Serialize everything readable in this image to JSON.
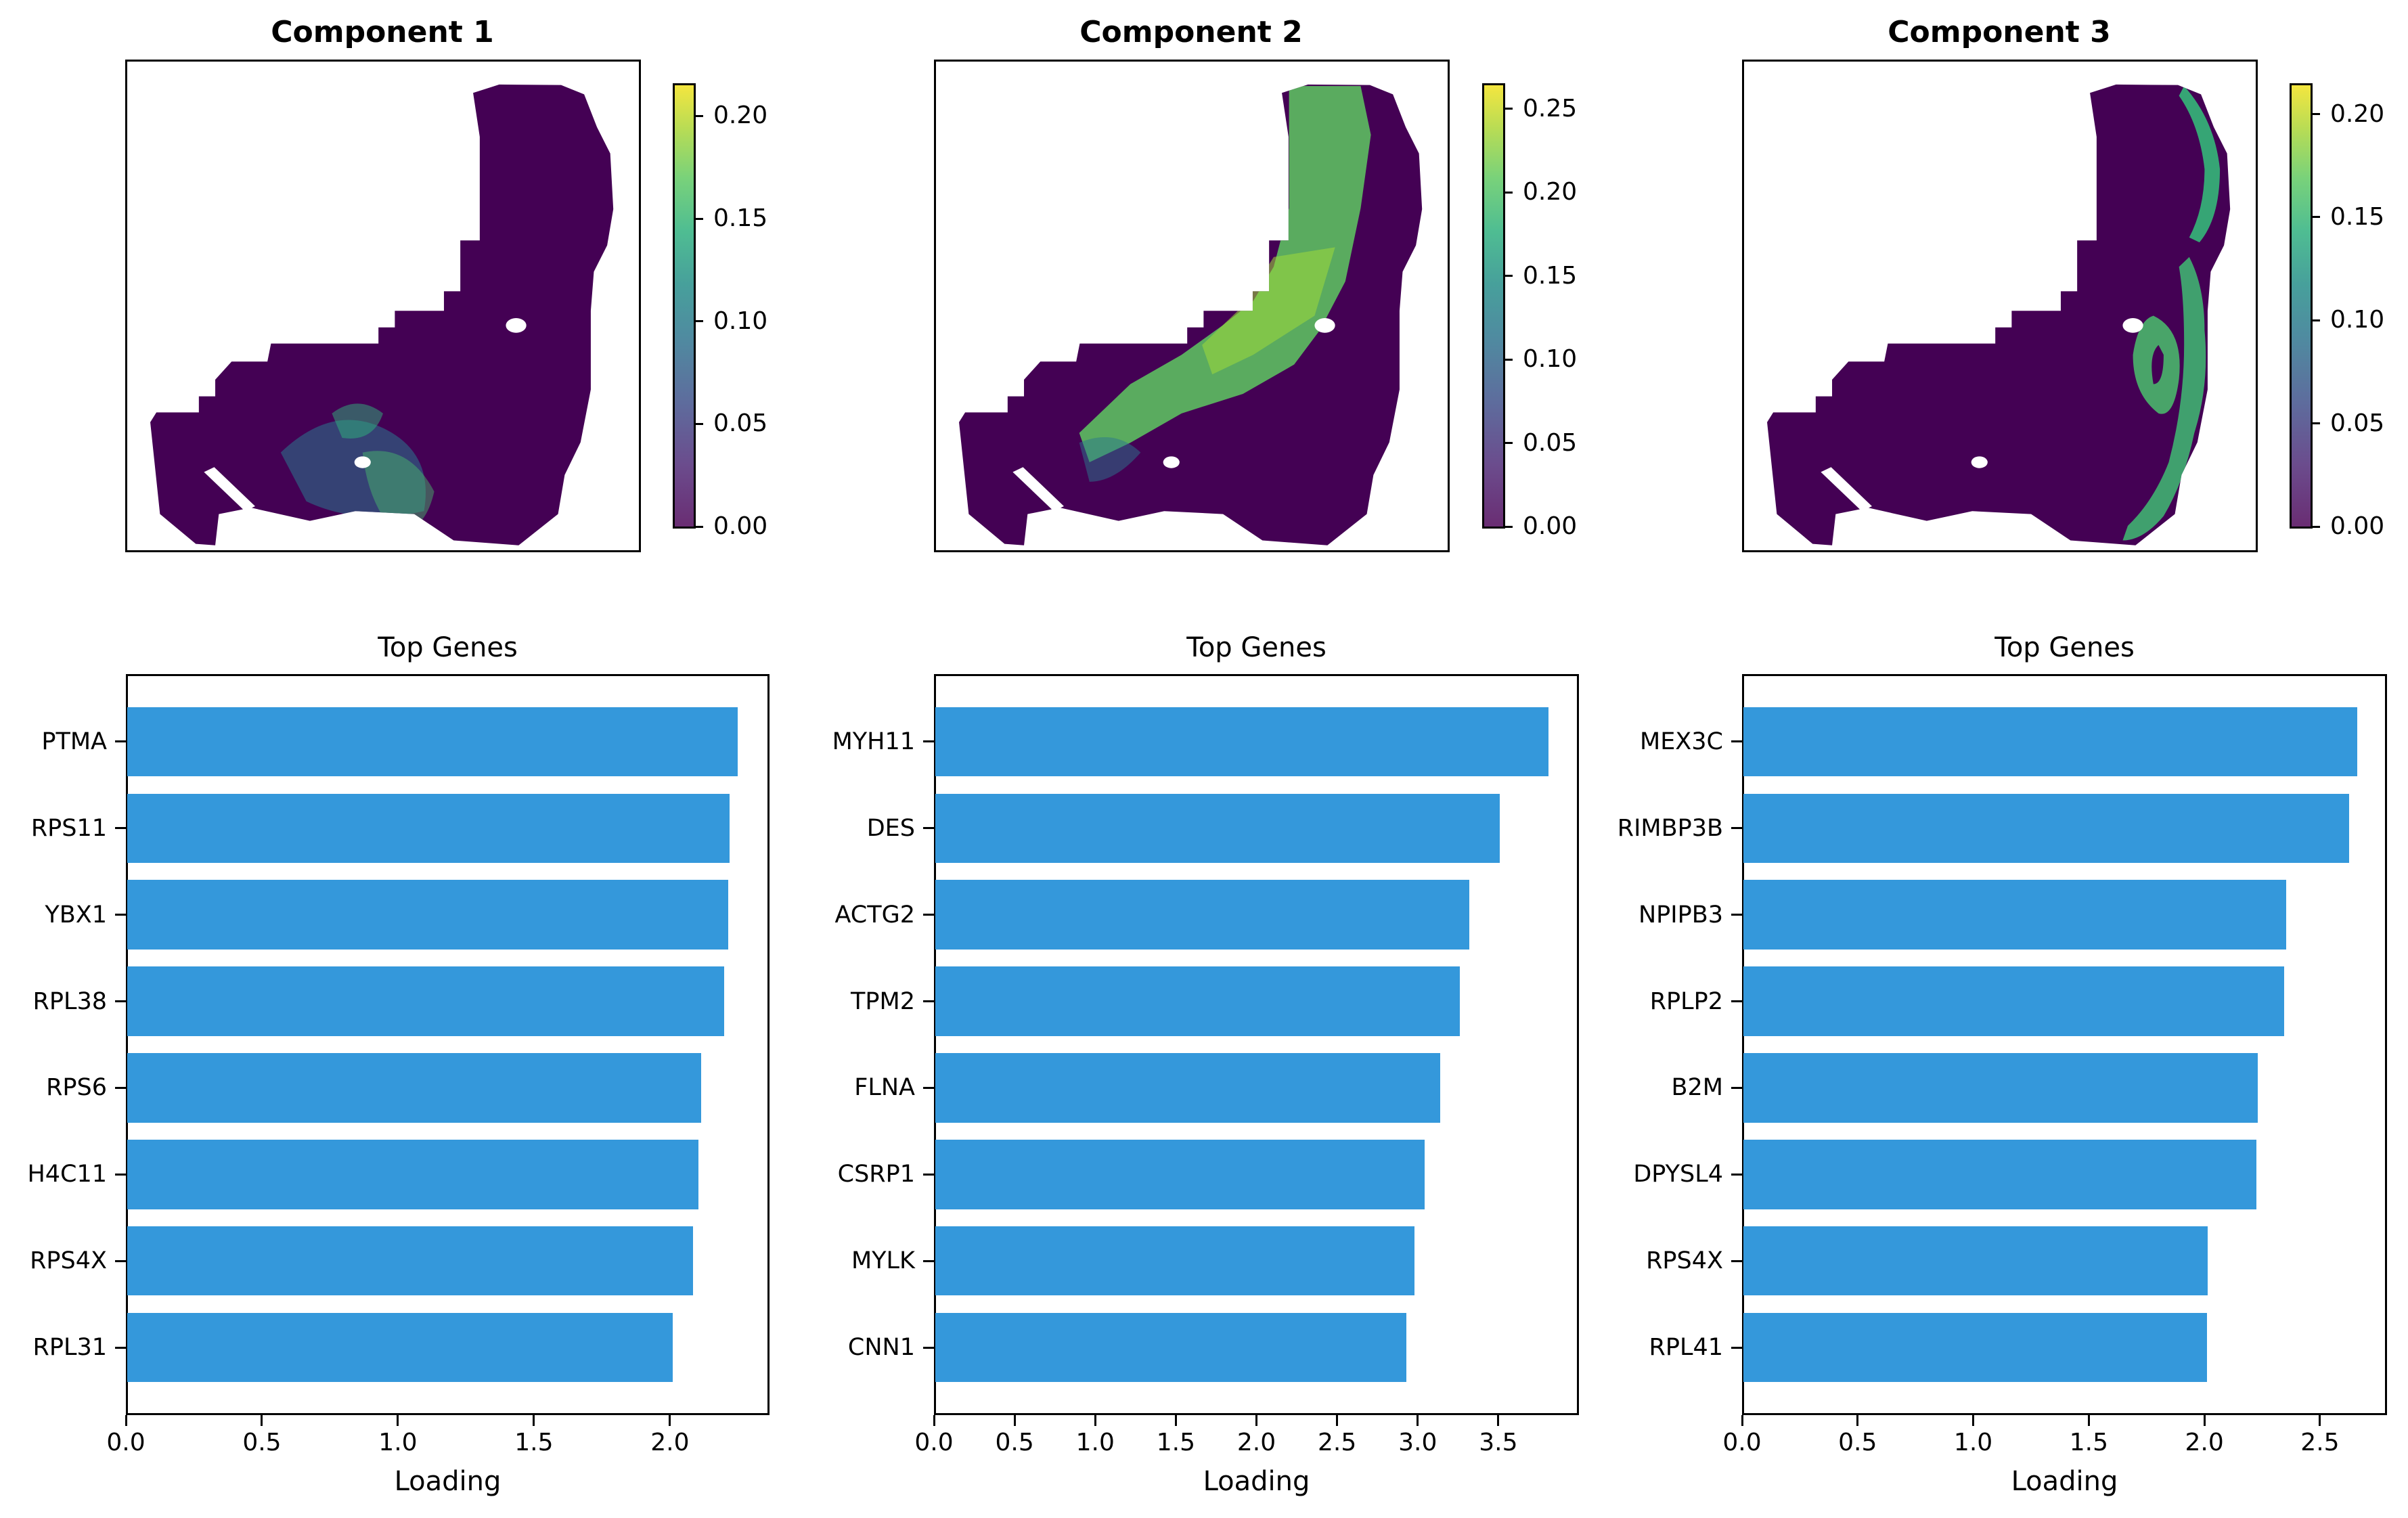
{
  "chart_data": [
    {
      "type": "scatter",
      "title": "Component 1",
      "description": "Spatial map of component 1 activity (viridis colormap)",
      "colormap": "viridis",
      "colorbar": {
        "min": 0.0,
        "max": 0.215,
        "ticks": [
          "0.00",
          "0.05",
          "0.10",
          "0.15",
          "0.20"
        ]
      },
      "high_region": "lower-center"
    },
    {
      "type": "scatter",
      "title": "Component 2",
      "description": "Spatial map of component 2 activity (viridis colormap)",
      "colormap": "viridis",
      "colorbar": {
        "min": 0.0,
        "max": 0.264,
        "ticks": [
          "0.00",
          "0.05",
          "0.10",
          "0.15",
          "0.20",
          "0.25"
        ]
      },
      "high_region": "diagonal band"
    },
    {
      "type": "scatter",
      "title": "Component 3",
      "description": "Spatial map of component 3 activity (viridis colormap)",
      "colormap": "viridis",
      "colorbar": {
        "min": 0.0,
        "max": 0.214,
        "ticks": [
          "0.00",
          "0.05",
          "0.10",
          "0.15",
          "0.20"
        ]
      },
      "high_region": "right-edge ring"
    },
    {
      "type": "bar",
      "orientation": "horizontal",
      "title": "Top Genes",
      "xlabel": "Loading",
      "ylabel": "",
      "categories": [
        "PTMA",
        "RPS11",
        "YBX1",
        "RPL38",
        "RPS6",
        "H4C11",
        "RPS4X",
        "RPL31"
      ],
      "values": [
        2.25,
        2.22,
        2.215,
        2.2,
        2.115,
        2.105,
        2.085,
        2.01
      ],
      "xlim": [
        0,
        2.366
      ],
      "xticks": [
        "0.0",
        "0.5",
        "1.0",
        "1.5",
        "2.0"
      ],
      "color": "#3498db"
    },
    {
      "type": "bar",
      "orientation": "horizontal",
      "title": "Top Genes",
      "xlabel": "Loading",
      "ylabel": "",
      "categories": [
        "MYH11",
        "DES",
        "ACTG2",
        "TPM2",
        "FLNA",
        "CSRP1",
        "MYLK",
        "CNN1"
      ],
      "values": [
        3.81,
        3.51,
        3.32,
        3.26,
        3.14,
        3.045,
        2.98,
        2.93
      ],
      "xlim": [
        0,
        4.0
      ],
      "xticks": [
        "0.0",
        "0.5",
        "1.0",
        "1.5",
        "2.0",
        "2.5",
        "3.0",
        "3.5"
      ],
      "color": "#3498db"
    },
    {
      "type": "bar",
      "orientation": "horizontal",
      "title": "Top Genes",
      "xlabel": "Loading",
      "ylabel": "",
      "categories": [
        "MEX3C",
        "RIMBP3B",
        "NPIPB3",
        "RPLP2",
        "B2M",
        "DPYSL4",
        "RPS4X",
        "RPL41"
      ],
      "values": [
        2.66,
        2.625,
        2.355,
        2.345,
        2.23,
        2.225,
        2.015,
        2.01
      ],
      "xlim": [
        0,
        2.79
      ],
      "xticks": [
        "0.0",
        "0.5",
        "1.0",
        "1.5",
        "2.0",
        "2.5"
      ],
      "color": "#3498db"
    }
  ]
}
